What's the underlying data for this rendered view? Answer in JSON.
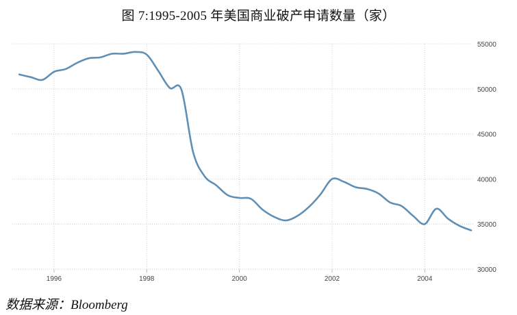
{
  "header": {
    "title": "图 7:1995-2005 年美国商业破产申请数量（家）"
  },
  "footer": {
    "source": "数据来源：Bloomberg"
  },
  "chart_data": {
    "type": "line",
    "title": "图 7:1995-2005 年美国商业破产申请数量（家）",
    "xlabel": "",
    "ylabel": "",
    "xlim": [
      1995.1,
      2005.0
    ],
    "ylim": [
      30000,
      55000
    ],
    "x_ticks": [
      1996,
      1998,
      2000,
      2002,
      2004
    ],
    "x_tick_labels": [
      "1996",
      "1998",
      "2000",
      "2002",
      "2004"
    ],
    "y_ticks": [
      30000,
      35000,
      40000,
      45000,
      50000,
      55000
    ],
    "y_tick_labels": [
      "30000",
      "35000",
      "40000",
      "45000",
      "50000",
      "55000"
    ],
    "y_axis_side": "right",
    "grid": true,
    "legend": "none",
    "line_color": "#5f8fb5",
    "series": [
      {
        "x": [
          1995.25,
          1995.5,
          1995.75,
          1996.0,
          1996.25,
          1996.5,
          1996.75,
          1997.0,
          1997.25,
          1997.5,
          1997.75,
          1998.0,
          1998.25,
          1998.5,
          1998.75,
          1999.0,
          1999.25,
          1999.5,
          1999.75,
          2000.0,
          2000.25,
          2000.5,
          2000.75,
          2001.0,
          2001.25,
          2001.5,
          2001.75,
          2002.0,
          2002.25,
          2002.5,
          2002.75,
          2003.0,
          2003.25,
          2003.5,
          2003.75,
          2004.0,
          2004.25,
          2004.5,
          2004.75,
          2005.0
        ],
        "values": [
          51600,
          51300,
          51000,
          51900,
          52200,
          52900,
          53400,
          53500,
          53900,
          53900,
          54100,
          53800,
          52000,
          50100,
          49900,
          43000,
          40300,
          39300,
          38200,
          37900,
          37800,
          36600,
          35800,
          35400,
          35900,
          36900,
          38300,
          40000,
          39700,
          39100,
          38900,
          38400,
          37400,
          37000,
          35900,
          35000,
          36700,
          35600,
          34800,
          34300
        ]
      }
    ]
  }
}
